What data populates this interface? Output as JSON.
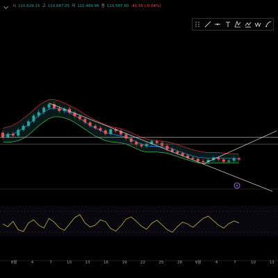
{
  "ohlc": {
    "open_label": "시",
    "open_value": "110,629.15",
    "high_label": "고",
    "high_value": "110,687.05",
    "low_label": "저",
    "low_value": "110,489.96",
    "close_label": "종",
    "close_value": "110,587.60",
    "change": "-41.55 (-0.04%)"
  },
  "toolbar": {
    "tools": [
      "grip-handle-icon",
      "trend-line-icon",
      "horizontal-line-icon",
      "text-tool-icon",
      "fib-icon",
      "pitchfork-icon",
      "pattern-icon",
      "brush-icon"
    ]
  },
  "colors": {
    "up": "#26a69a",
    "down": "#ef5350",
    "upper_band": "#c62828",
    "lower_band": "#4caf50",
    "midline": "#1e88e5",
    "trend": "#e0e0e0",
    "oscillator": "#c9b84a",
    "band_fill": "#0d2a2a"
  },
  "chart_data": [
    {
      "type": "candlestick",
      "x_ticks": [
        "8월",
        "4",
        "7",
        "10",
        "13",
        "16",
        "19",
        "22",
        "25",
        "28",
        "9월",
        "4",
        "7",
        "10",
        "13"
      ],
      "ylim": [
        60,
        280
      ],
      "indicator": "bollinger_bands",
      "candles": [
        [
          120,
          112,
          108,
          124
        ],
        [
          112,
          118,
          110,
          121
        ],
        [
          118,
          115,
          112,
          122
        ],
        [
          115,
          125,
          113,
          128
        ],
        [
          125,
          132,
          122,
          135
        ],
        [
          132,
          140,
          129,
          143
        ],
        [
          140,
          150,
          137,
          153
        ],
        [
          150,
          156,
          146,
          160
        ],
        [
          156,
          164,
          152,
          167
        ],
        [
          164,
          170,
          160,
          172
        ],
        [
          170,
          163,
          160,
          174
        ],
        [
          163,
          158,
          155,
          167
        ],
        [
          158,
          162,
          154,
          165
        ],
        [
          162,
          155,
          152,
          166
        ],
        [
          155,
          149,
          146,
          158
        ],
        [
          149,
          144,
          141,
          152
        ],
        [
          144,
          138,
          135,
          147
        ],
        [
          138,
          132,
          129,
          141
        ],
        [
          132,
          128,
          125,
          135
        ],
        [
          128,
          124,
          121,
          131
        ],
        [
          124,
          118,
          115,
          127
        ],
        [
          118,
          126,
          115,
          128
        ],
        [
          126,
          123,
          120,
          129
        ],
        [
          123,
          117,
          114,
          126
        ],
        [
          117,
          110,
          107,
          120
        ],
        [
          110,
          104,
          101,
          113
        ],
        [
          104,
          99,
          96,
          107
        ],
        [
          99,
          96,
          93,
          102
        ],
        [
          96,
          100,
          93,
          103
        ],
        [
          100,
          105,
          97,
          108
        ],
        [
          105,
          102,
          99,
          109
        ],
        [
          102,
          97,
          94,
          105
        ],
        [
          97,
          91,
          88,
          100
        ],
        [
          91,
          87,
          84,
          94
        ],
        [
          87,
          84,
          81,
          90
        ],
        [
          84,
          80,
          77,
          87
        ],
        [
          80,
          76,
          73,
          83
        ],
        [
          76,
          74,
          71,
          79
        ],
        [
          74,
          70,
          67,
          77
        ],
        [
          70,
          68,
          65,
          73
        ],
        [
          68,
          72,
          65,
          75
        ],
        [
          72,
          76,
          69,
          79
        ],
        [
          76,
          73,
          70,
          79
        ],
        [
          73,
          69,
          66,
          76
        ],
        [
          69,
          71,
          66,
          74
        ],
        [
          71,
          75,
          68,
          78
        ],
        [
          75,
          73,
          70,
          78
        ]
      ],
      "upper_band": [
        128,
        130,
        133,
        138,
        145,
        152,
        160,
        168,
        174,
        178,
        178,
        176,
        172,
        168,
        163,
        158,
        152,
        147,
        142,
        138,
        134,
        131,
        129,
        127,
        124,
        120,
        116,
        112,
        109,
        107,
        106,
        105,
        104,
        102,
        99,
        96,
        93,
        90,
        88,
        86,
        85,
        85,
        85,
        84,
        83,
        83,
        82
      ],
      "lower_band": [
        104,
        103,
        104,
        106,
        110,
        116,
        124,
        132,
        139,
        145,
        148,
        148,
        146,
        143,
        138,
        132,
        126,
        120,
        114,
        110,
        106,
        104,
        103,
        102,
        100,
        96,
        92,
        88,
        86,
        86,
        86,
        85,
        84,
        81,
        78,
        75,
        72,
        69,
        67,
        66,
        66,
        67,
        67,
        67,
        67,
        67,
        67
      ],
      "midline": [
        116,
        116,
        118,
        122,
        128,
        134,
        142,
        150,
        156,
        162,
        163,
        162,
        159,
        155,
        150,
        145,
        139,
        133,
        128,
        124,
        120,
        118,
        116,
        114,
        112,
        108,
        104,
        100,
        97,
        96,
        96,
        95,
        94,
        92,
        88,
        85,
        82,
        79,
        77,
        76,
        75,
        76,
        76,
        75,
        75,
        75,
        74
      ],
      "horizontal_levels": [
        112,
        100
      ]
    },
    {
      "type": "line",
      "ylim": [
        0,
        100
      ],
      "values": [
        55,
        48,
        62,
        40,
        35,
        58,
        66,
        52,
        44,
        70,
        60,
        45,
        38,
        55,
        72,
        80,
        58,
        47,
        52,
        66,
        61,
        43,
        36,
        50,
        68,
        74,
        62,
        49,
        41,
        57,
        65,
        53,
        40,
        33,
        48,
        60,
        55,
        46,
        58,
        70,
        76,
        64,
        52,
        44,
        56,
        63,
        58
      ]
    }
  ]
}
